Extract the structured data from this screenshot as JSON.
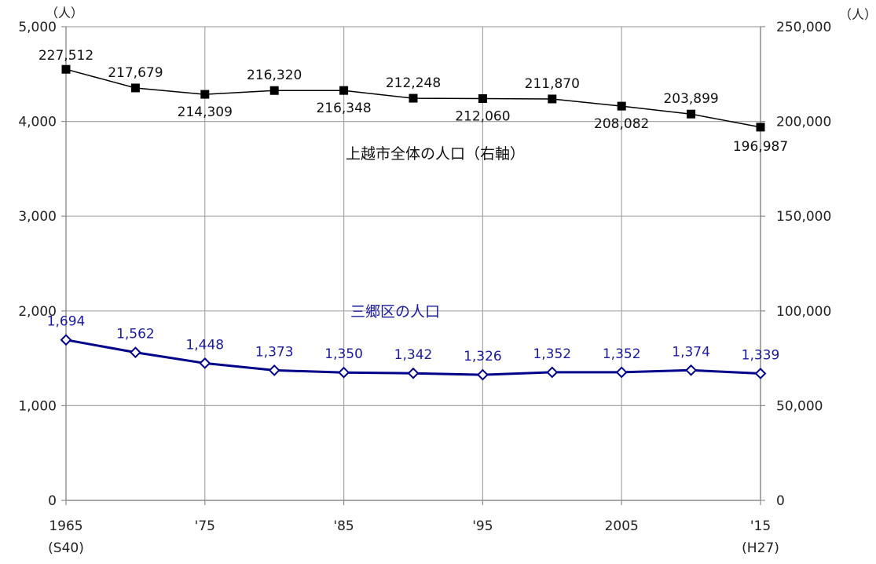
{
  "chart_data": {
    "type": "line",
    "x": [
      1965,
      1970,
      1975,
      1980,
      1985,
      1990,
      1995,
      2000,
      2005,
      2010,
      2015
    ],
    "x_ticks": [
      {
        "x": 1965,
        "label": "1965",
        "sublabel": "(S40)"
      },
      {
        "x": 1975,
        "label": "'75",
        "sublabel": ""
      },
      {
        "x": 1985,
        "label": "'85",
        "sublabel": ""
      },
      {
        "x": 1995,
        "label": "'95",
        "sublabel": ""
      },
      {
        "x": 2005,
        "label": "2005",
        "sublabel": ""
      },
      {
        "x": 2015,
        "label": "'15",
        "sublabel": "(H27)"
      }
    ],
    "xlim": [
      1965,
      2015
    ],
    "y_left": {
      "unit": "（人）",
      "ylim": [
        0,
        5000
      ],
      "ticks": [
        {
          "value": 0,
          "label": "0"
        },
        {
          "value": 1000,
          "label": "1,000"
        },
        {
          "value": 2000,
          "label": "2,000"
        },
        {
          "value": 3000,
          "label": "3,000"
        },
        {
          "value": 4000,
          "label": "4,000"
        },
        {
          "value": 5000,
          "label": "5,000"
        }
      ]
    },
    "y_right": {
      "unit": "（人）",
      "ylim": [
        0,
        250000
      ],
      "ticks": [
        {
          "value": 0,
          "label": "0"
        },
        {
          "value": 50000,
          "label": "50,000"
        },
        {
          "value": 100000,
          "label": "100,000"
        },
        {
          "value": 150000,
          "label": "150,000"
        },
        {
          "value": 200000,
          "label": "200,000"
        },
        {
          "value": 250000,
          "label": "250,000"
        }
      ]
    },
    "grid": true,
    "series": [
      {
        "name": "上越市全体の人口（右軸）",
        "axis": "right",
        "color": "#000000",
        "marker": "filled-square",
        "values": [
          227512,
          217679,
          214309,
          216320,
          216348,
          212248,
          212060,
          211870,
          208082,
          203899,
          196987
        ],
        "labels": [
          "227,512",
          "217,679",
          "214,309",
          "216,320",
          "216,348",
          "212,248",
          "212,060",
          "211,870",
          "208,082",
          "203,899",
          "196,987"
        ]
      },
      {
        "name": "三郷区の人口",
        "axis": "left",
        "color": "#00008b",
        "marker": "open-diamond",
        "values": [
          1694,
          1562,
          1448,
          1373,
          1350,
          1342,
          1326,
          1352,
          1352,
          1374,
          1339
        ],
        "labels": [
          "1,694",
          "1,562",
          "1,448",
          "1,373",
          "1,350",
          "1,342",
          "1,326",
          "1,352",
          "1,352",
          "1,374",
          "1,339"
        ]
      }
    ]
  }
}
